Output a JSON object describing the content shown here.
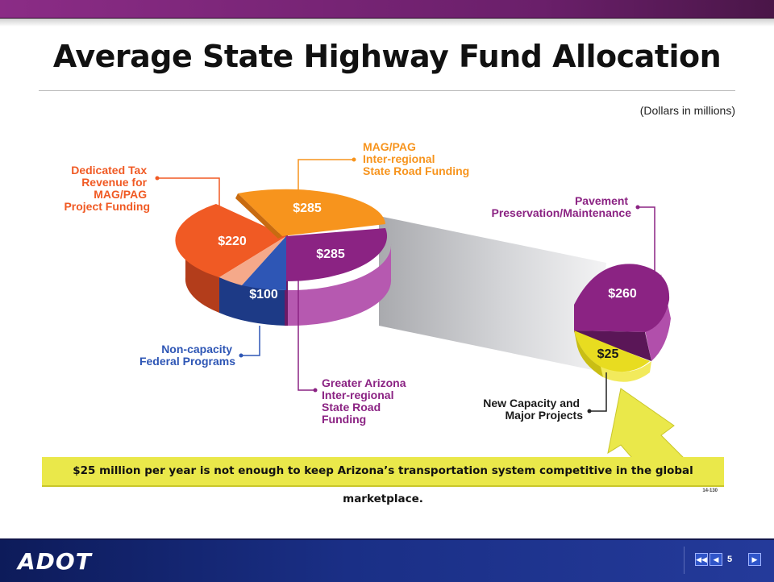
{
  "title": "Average State Highway Fund Allocation",
  "subtitle": "(Dollars in millions)",
  "colors": {
    "orange_red": "#f05a24",
    "orange": "#f7941d",
    "purple": "#8b2383",
    "blue": "#2e56b5",
    "salmon": "#f5a98a",
    "yellow": "#e8dc20"
  },
  "chart_data": [
    {
      "type": "pie",
      "slices": [
        {
          "value_label": "$285",
          "value": 285,
          "label": "MAG/PAG Inter-regional State Road Funding"
        },
        {
          "value_label": "$285",
          "value": 285,
          "label": "Greater Arizona Inter-regional State Road Funding"
        },
        {
          "value_label": "$100",
          "value": 100,
          "label": "Non-capacity Federal Programs"
        },
        {
          "value_label": "$220",
          "value": 220,
          "label": "Dedicated Tax Revenue for MAG/PAG Project Funding"
        }
      ]
    },
    {
      "type": "pie",
      "slices": [
        {
          "value_label": "$260",
          "value": 260,
          "label": "Pavement Preservation/Maintenance"
        },
        {
          "value_label": "$25",
          "value": 25,
          "label": "New Capacity and Major Projects"
        }
      ]
    }
  ],
  "labels": {
    "mag_pag": [
      "MAG/PAG",
      "Inter-regional",
      "State Road Funding"
    ],
    "dedicated": [
      "Dedicated Tax",
      "Revenue for",
      "MAG/PAG",
      "Project Funding"
    ],
    "noncap": [
      "Non-capacity",
      "Federal Programs"
    ],
    "greater": [
      "Greater Arizona",
      "Inter-regional",
      "State Road",
      "Funding"
    ],
    "pavement": [
      "Pavement",
      "Preservation/Maintenance"
    ],
    "newcap": [
      "New Capacity and",
      "Major Projects"
    ]
  },
  "banner": "$25 million per year is not enough to keep Arizona’s transportation system competitive in the global marketplace.",
  "code": "14-130",
  "footer": {
    "logo": "ADOT",
    "page": "5"
  }
}
